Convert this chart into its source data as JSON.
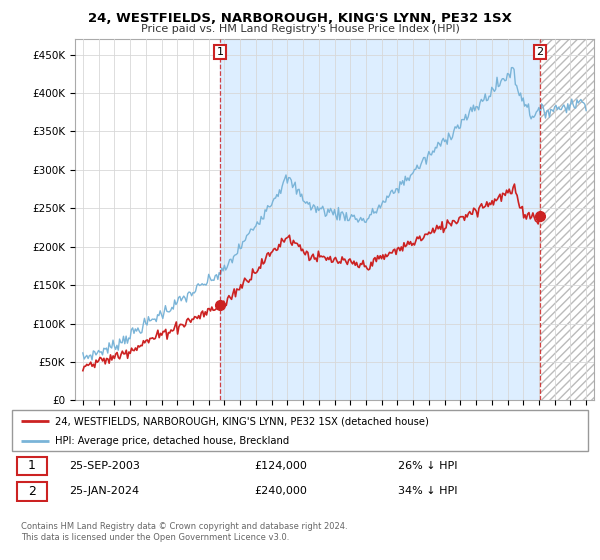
{
  "title": "24, WESTFIELDS, NARBOROUGH, KING'S LYNN, PE32 1SX",
  "subtitle": "Price paid vs. HM Land Registry's House Price Index (HPI)",
  "ylabel_ticks": [
    "£0",
    "£50K",
    "£100K",
    "£150K",
    "£200K",
    "£250K",
    "£300K",
    "£350K",
    "£400K",
    "£450K"
  ],
  "ytick_values": [
    0,
    50000,
    100000,
    150000,
    200000,
    250000,
    300000,
    350000,
    400000,
    450000
  ],
  "ylim": [
    0,
    470000
  ],
  "xlim_start": 1994.5,
  "xlim_end": 2027.5,
  "hpi_color": "#7ab4d8",
  "price_color": "#cc2222",
  "sale1_x": 2003.73,
  "sale1_y": 124000,
  "sale2_x": 2024.07,
  "sale2_y": 240000,
  "legend_line1": "24, WESTFIELDS, NARBOROUGH, KING'S LYNN, PE32 1SX (detached house)",
  "legend_line2": "HPI: Average price, detached house, Breckland",
  "table_row1": [
    "1",
    "25-SEP-2003",
    "£124,000",
    "26% ↓ HPI"
  ],
  "table_row2": [
    "2",
    "25-JAN-2024",
    "£240,000",
    "34% ↓ HPI"
  ],
  "footer1": "Contains HM Land Registry data © Crown copyright and database right 2024.",
  "footer2": "This data is licensed under the Open Government Licence v3.0.",
  "background_color": "#ffffff",
  "grid_color": "#d8d8d8",
  "shade_color": "#ddeeff",
  "hatch_color": "#cccccc"
}
